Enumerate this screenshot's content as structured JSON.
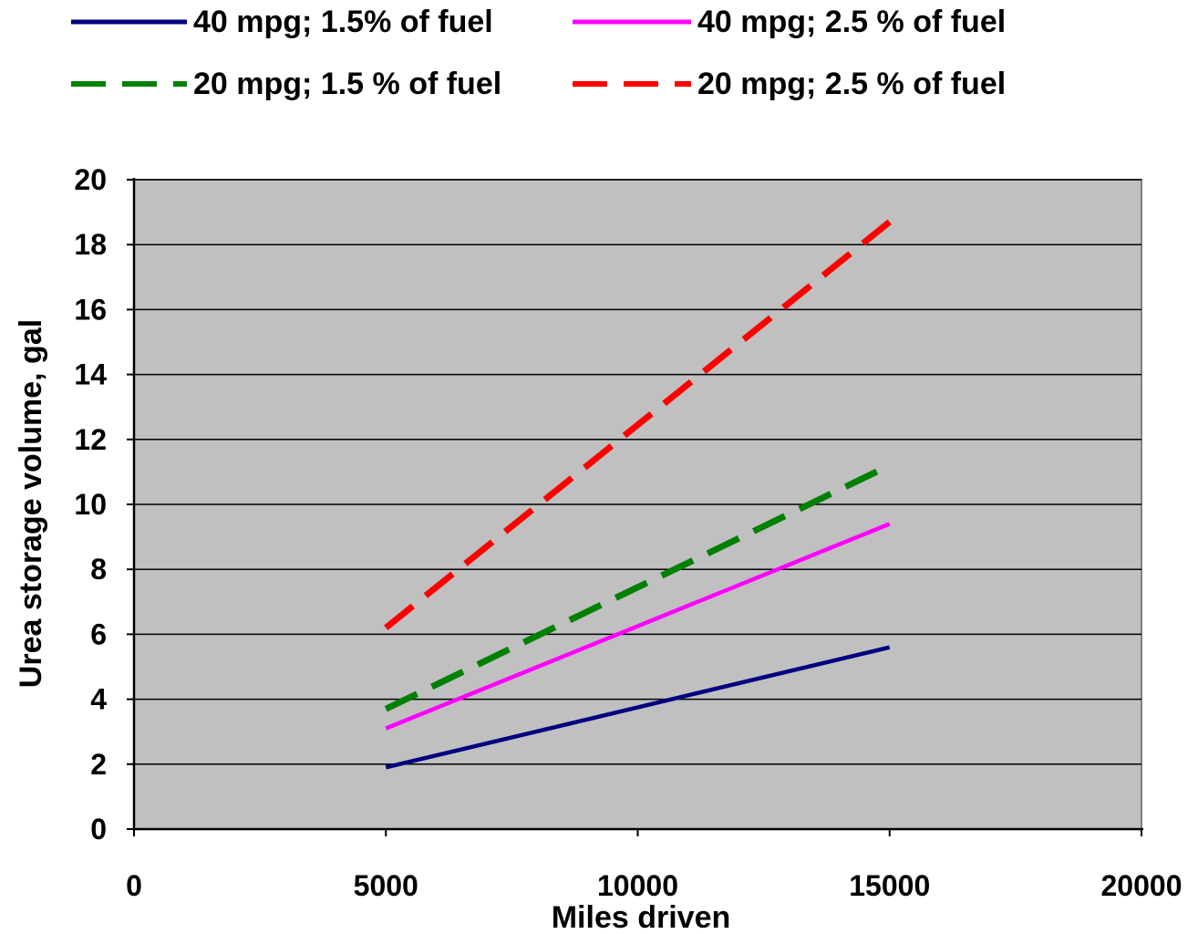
{
  "chart_data": {
    "type": "line",
    "xlabel": "Miles driven",
    "ylabel": "Urea storage volume, gal",
    "xlim": [
      0,
      20000
    ],
    "ylim": [
      0,
      20
    ],
    "xticks": [
      "0",
      "5000",
      "10000",
      "15000",
      "20000"
    ],
    "yticks": [
      "0",
      "2",
      "4",
      "6",
      "8",
      "10",
      "12",
      "14",
      "16",
      "18",
      "20"
    ],
    "grid": "horizontal",
    "legend_position": "top",
    "plot_background": "#c0c0c0",
    "series": [
      {
        "name": "40 mpg; 1.5% of fuel",
        "x": [
          5000,
          15000
        ],
        "y": [
          1.9,
          5.6
        ],
        "color": "#000080",
        "dashed": false
      },
      {
        "name": "40 mpg; 2.5 % of fuel",
        "x": [
          5000,
          15000
        ],
        "y": [
          3.1,
          9.4
        ],
        "color": "#ff00ff",
        "dashed": false
      },
      {
        "name": "20 mpg; 1.5 % of fuel",
        "x": [
          5000,
          15000
        ],
        "y": [
          3.7,
          11.2
        ],
        "color": "#008000",
        "dashed": true
      },
      {
        "name": "20 mpg; 2.5 % of fuel",
        "x": [
          5000,
          15000
        ],
        "y": [
          6.2,
          18.7
        ],
        "color": "#ff0000",
        "dashed": true
      }
    ]
  }
}
